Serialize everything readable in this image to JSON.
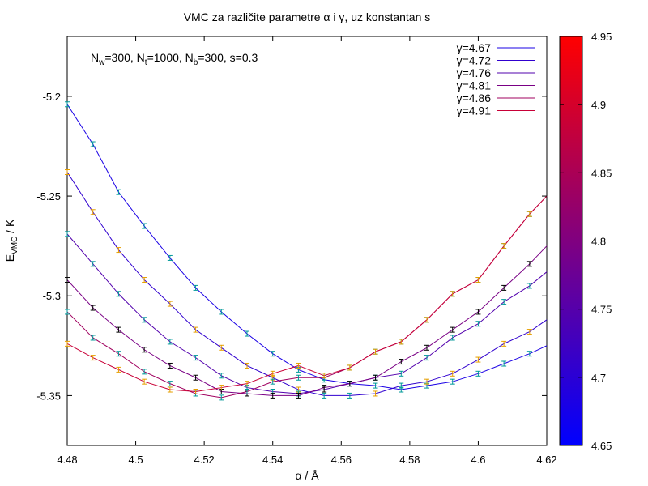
{
  "chart_data": {
    "type": "line",
    "title": "VMC za različite parametre α i γ, uz konstantan s",
    "xlabel": "α / Å",
    "ylabel": "E_VMC / K",
    "xlim": [
      4.48,
      4.62
    ],
    "ylim": [
      -5.375,
      -5.17
    ],
    "xticks": [
      {
        "value": 4.48,
        "label": "4.48"
      },
      {
        "value": 4.5,
        "label": "4.5"
      },
      {
        "value": 4.52,
        "label": "4.52"
      },
      {
        "value": 4.54,
        "label": "4.54"
      },
      {
        "value": 4.56,
        "label": "4.56"
      },
      {
        "value": 4.58,
        "label": "4.58"
      },
      {
        "value": 4.6,
        "label": "4.6"
      },
      {
        "value": 4.62,
        "label": "4.62"
      }
    ],
    "yticks": [
      {
        "value": -5.2,
        "label": "-5.2"
      },
      {
        "value": -5.25,
        "label": "-5.25"
      },
      {
        "value": -5.3,
        "label": "-5.3"
      },
      {
        "value": -5.35,
        "label": "-5.35"
      }
    ],
    "grid": false,
    "legend_position": "top-right",
    "annotation": {
      "pre": "N",
      "sub1": "w",
      "mid1": "=300, N",
      "sub2": "t",
      "mid2": "=1000, N",
      "sub3": "b",
      "post": "=300, s=0.3"
    },
    "colorbar": {
      "min": 4.65,
      "max": 4.95,
      "ticks": [
        {
          "value": 4.65,
          "label": "4.65"
        },
        {
          "value": 4.7,
          "label": "4.7"
        },
        {
          "value": 4.75,
          "label": "4.75"
        },
        {
          "value": 4.8,
          "label": "4.8"
        },
        {
          "value": 4.85,
          "label": "4.85"
        },
        {
          "value": 4.9,
          "label": "4.9"
        },
        {
          "value": 4.95,
          "label": "4.95"
        }
      ],
      "low_color": "#0000ff",
      "high_color": "#ff0000"
    },
    "x": [
      4.48,
      4.4875,
      4.495,
      4.5025,
      4.51,
      4.5175,
      4.525,
      4.5325,
      4.54,
      4.5475,
      4.555,
      4.5625,
      4.57,
      4.5775,
      4.585,
      4.5925,
      4.6,
      4.6075,
      4.615,
      4.62
    ],
    "errorbar_colors": [
      "#009999",
      "#e69f00",
      "#000000"
    ],
    "series": [
      {
        "name": "γ=4.67",
        "color": "#1a00e5",
        "values": [
          -5.204,
          -5.224,
          -5.248,
          -5.265,
          -5.281,
          -5.296,
          -5.308,
          -5.319,
          -5.329,
          -5.337,
          -5.342,
          -5.344,
          -5.345,
          -5.347,
          -5.345,
          -5.343,
          -5.339,
          -5.334,
          -5.329,
          -5.325
        ],
        "errorbar_color_index": [
          0,
          0,
          0,
          0,
          0,
          0,
          0,
          0,
          0,
          0,
          0,
          2,
          0,
          0,
          0,
          0,
          0,
          0,
          0,
          null
        ]
      },
      {
        "name": "γ=4.72",
        "color": "#3000cf",
        "values": [
          -5.238,
          -5.258,
          -5.277,
          -5.292,
          -5.304,
          -5.317,
          -5.326,
          -5.335,
          -5.341,
          -5.347,
          -5.35,
          -5.35,
          -5.349,
          -5.345,
          -5.343,
          -5.339,
          -5.332,
          -5.324,
          -5.318,
          -5.312
        ],
        "errorbar_color_index": [
          1,
          1,
          1,
          1,
          1,
          1,
          1,
          1,
          1,
          1,
          0,
          0,
          1,
          0,
          1,
          1,
          1,
          1,
          1,
          null
        ]
      },
      {
        "name": "γ=4.76",
        "color": "#5200ad",
        "values": [
          -5.269,
          -5.284,
          -5.299,
          -5.312,
          -5.323,
          -5.331,
          -5.34,
          -5.346,
          -5.348,
          -5.349,
          -5.347,
          -5.344,
          -5.341,
          -5.339,
          -5.331,
          -5.321,
          -5.314,
          -5.303,
          -5.295,
          -5.288
        ],
        "errorbar_color_index": [
          0,
          0,
          0,
          0,
          0,
          0,
          0,
          0,
          0,
          0,
          2,
          0,
          0,
          0,
          0,
          0,
          0,
          0,
          0,
          null
        ]
      },
      {
        "name": "γ=4.81",
        "color": "#7a0085",
        "values": [
          -5.292,
          -5.306,
          -5.317,
          -5.327,
          -5.335,
          -5.341,
          -5.348,
          -5.349,
          -5.35,
          -5.35,
          -5.346,
          -5.344,
          -5.341,
          -5.333,
          -5.326,
          -5.317,
          -5.308,
          -5.296,
          -5.284,
          -5.275
        ],
        "errorbar_color_index": [
          2,
          2,
          2,
          2,
          2,
          2,
          2,
          2,
          2,
          2,
          2,
          2,
          2,
          2,
          2,
          2,
          2,
          2,
          2,
          null
        ]
      },
      {
        "name": "γ=4.86",
        "color": "#a0005f",
        "values": [
          -5.308,
          -5.321,
          -5.329,
          -5.338,
          -5.344,
          -5.349,
          -5.351,
          -5.348,
          -5.343,
          -5.341,
          -5.341,
          -5.336,
          -5.328,
          -5.323,
          -5.312,
          -5.299,
          -5.292,
          -5.275,
          -5.259,
          -5.25
        ],
        "errorbar_color_index": [
          0,
          0,
          0,
          0,
          0,
          0,
          0,
          0,
          0,
          0,
          0,
          0,
          0,
          0,
          0,
          0,
          0,
          0,
          0,
          null
        ]
      },
      {
        "name": "γ=4.91",
        "color": "#c80037",
        "values": [
          -5.324,
          -5.331,
          -5.337,
          -5.343,
          -5.347,
          -5.348,
          -5.346,
          -5.344,
          -5.339,
          -5.335,
          -5.34,
          -5.336,
          -5.328,
          -5.323,
          -5.312,
          -5.299,
          -5.292,
          -5.275,
          -5.259,
          -5.25
        ],
        "errorbar_color_index": [
          1,
          1,
          1,
          1,
          1,
          1,
          1,
          1,
          1,
          1,
          1,
          1,
          1,
          1,
          1,
          1,
          1,
          1,
          1,
          null
        ]
      }
    ]
  }
}
